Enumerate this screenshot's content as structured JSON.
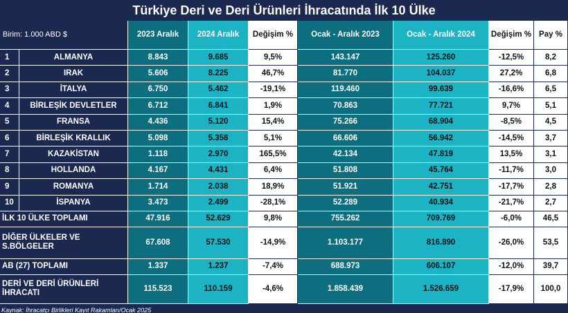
{
  "title": "Türkiye Deri ve Deri Ürünleri İhracatında İlk 10 Ülke",
  "unit_label": "Birim: 1.000 ABD $",
  "headers": [
    "2023 Aralık",
    "2024 Aralık",
    "Değişim %",
    "Ocak - Aralık 2023",
    "Ocak - Aralık 2024",
    "Değişim %",
    "Pay %"
  ],
  "rows": [
    {
      "rank": "1",
      "country": "ALMANYA",
      "v": [
        "8.843",
        "9.685",
        "9,5%",
        "143.147",
        "125.260",
        "-12,5%",
        "8,2"
      ]
    },
    {
      "rank": "2",
      "country": "IRAK",
      "v": [
        "5.606",
        "8.225",
        "46,7%",
        "81.770",
        "104.037",
        "27,2%",
        "6,8"
      ]
    },
    {
      "rank": "3",
      "country": "İTALYA",
      "v": [
        "6.750",
        "5.462",
        "-19,1%",
        "119.460",
        "99.639",
        "-16,6%",
        "6,5"
      ]
    },
    {
      "rank": "4",
      "country": "BİRLEŞİK DEVLETLER",
      "v": [
        "6.712",
        "6.841",
        "1,9%",
        "70.863",
        "77.721",
        "9,7%",
        "5,1"
      ]
    },
    {
      "rank": "5",
      "country": "FRANSA",
      "v": [
        "4.436",
        "5.120",
        "15,4%",
        "75.266",
        "68.904",
        "-8,5%",
        "4,5"
      ]
    },
    {
      "rank": "6",
      "country": "BİRLEŞİK KRALLIK",
      "v": [
        "5.098",
        "5.358",
        "5,1%",
        "66.606",
        "56.942",
        "-14,5%",
        "3,7"
      ]
    },
    {
      "rank": "7",
      "country": "KAZAKİSTAN",
      "v": [
        "1.118",
        "2.970",
        "165,5%",
        "42.134",
        "47.819",
        "13,5%",
        "3,1"
      ]
    },
    {
      "rank": "8",
      "country": "HOLLANDA",
      "v": [
        "4.167",
        "4.431",
        "6,4%",
        "51.808",
        "45.764",
        "-11,7%",
        "3,0"
      ]
    },
    {
      "rank": "9",
      "country": "ROMANYA",
      "v": [
        "1.714",
        "2.038",
        "18,9%",
        "51.921",
        "42.751",
        "-17,7%",
        "2,8"
      ]
    },
    {
      "rank": "10",
      "country": "İSPANYA",
      "v": [
        "3.473",
        "2.499",
        "-28,1%",
        "52.289",
        "40.934",
        "-21,7%",
        "2,7"
      ]
    }
  ],
  "summary_rows": [
    {
      "label": "İLK 10 ÜLKE TOPLAMI",
      "v": [
        "47.916",
        "52.629",
        "9,8%",
        "755.262",
        "709.769",
        "-6,0%",
        "46,5"
      ]
    },
    {
      "label": "DİĞER ÜLKELER VE S.BÖLGELER",
      "v": [
        "67.608",
        "57.530",
        "-14,9%",
        "1.103.177",
        "816.890",
        "-26,0%",
        "53,5"
      ]
    },
    {
      "label": "AB (27) TOPLAMI",
      "v": [
        "1.337",
        "1.237",
        "-7,4%",
        "688.973",
        "606.107",
        "-12,0%",
        "39,7"
      ]
    },
    {
      "label": "DERİ VE DERİ ÜRÜNLERİ İHRACATI",
      "v": [
        "115.523",
        "110.159",
        "-4,6%",
        "1.858.439",
        "1.526.659",
        "-17,9%",
        "100,0"
      ]
    }
  ],
  "source": "Kaynak: İhracatçı Birlikleri Kayıt Rakamları/Ocak 2025",
  "colors": {
    "navy": "#1b2850",
    "dark_teal": "#0c6e7e",
    "light_teal": "#1cb3c4",
    "white": "#ffffff"
  }
}
